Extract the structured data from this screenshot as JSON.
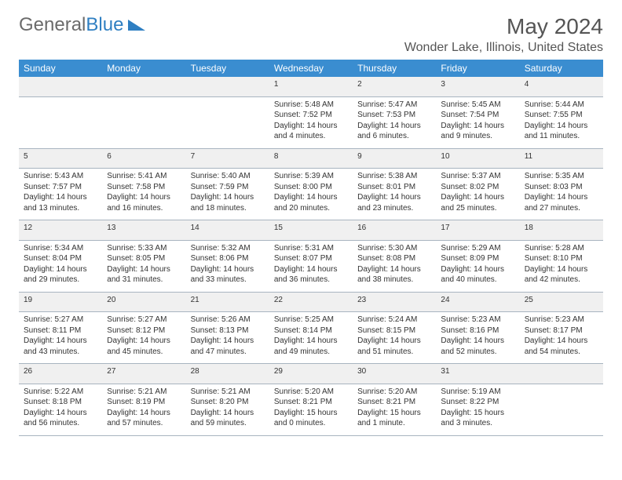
{
  "logo": {
    "part1": "General",
    "part2": "Blue"
  },
  "title": "May 2024",
  "location": "Wonder Lake, Illinois, United States",
  "colors": {
    "header_bg": "#3a8dd0",
    "header_text": "#ffffff",
    "daynum_bg": "#f0f0f0",
    "body_text": "#333333",
    "title_text": "#555555",
    "rule": "#a8b4c0"
  },
  "day_headers": [
    "Sunday",
    "Monday",
    "Tuesday",
    "Wednesday",
    "Thursday",
    "Friday",
    "Saturday"
  ],
  "weeks": [
    {
      "nums": [
        "",
        "",
        "",
        "1",
        "2",
        "3",
        "4"
      ],
      "cells": [
        null,
        null,
        null,
        {
          "sunrise": "5:48 AM",
          "sunset": "7:52 PM",
          "daylight": "14 hours and 4 minutes."
        },
        {
          "sunrise": "5:47 AM",
          "sunset": "7:53 PM",
          "daylight": "14 hours and 6 minutes."
        },
        {
          "sunrise": "5:45 AM",
          "sunset": "7:54 PM",
          "daylight": "14 hours and 9 minutes."
        },
        {
          "sunrise": "5:44 AM",
          "sunset": "7:55 PM",
          "daylight": "14 hours and 11 minutes."
        }
      ]
    },
    {
      "nums": [
        "5",
        "6",
        "7",
        "8",
        "9",
        "10",
        "11"
      ],
      "cells": [
        {
          "sunrise": "5:43 AM",
          "sunset": "7:57 PM",
          "daylight": "14 hours and 13 minutes."
        },
        {
          "sunrise": "5:41 AM",
          "sunset": "7:58 PM",
          "daylight": "14 hours and 16 minutes."
        },
        {
          "sunrise": "5:40 AM",
          "sunset": "7:59 PM",
          "daylight": "14 hours and 18 minutes."
        },
        {
          "sunrise": "5:39 AM",
          "sunset": "8:00 PM",
          "daylight": "14 hours and 20 minutes."
        },
        {
          "sunrise": "5:38 AM",
          "sunset": "8:01 PM",
          "daylight": "14 hours and 23 minutes."
        },
        {
          "sunrise": "5:37 AM",
          "sunset": "8:02 PM",
          "daylight": "14 hours and 25 minutes."
        },
        {
          "sunrise": "5:35 AM",
          "sunset": "8:03 PM",
          "daylight": "14 hours and 27 minutes."
        }
      ]
    },
    {
      "nums": [
        "12",
        "13",
        "14",
        "15",
        "16",
        "17",
        "18"
      ],
      "cells": [
        {
          "sunrise": "5:34 AM",
          "sunset": "8:04 PM",
          "daylight": "14 hours and 29 minutes."
        },
        {
          "sunrise": "5:33 AM",
          "sunset": "8:05 PM",
          "daylight": "14 hours and 31 minutes."
        },
        {
          "sunrise": "5:32 AM",
          "sunset": "8:06 PM",
          "daylight": "14 hours and 33 minutes."
        },
        {
          "sunrise": "5:31 AM",
          "sunset": "8:07 PM",
          "daylight": "14 hours and 36 minutes."
        },
        {
          "sunrise": "5:30 AM",
          "sunset": "8:08 PM",
          "daylight": "14 hours and 38 minutes."
        },
        {
          "sunrise": "5:29 AM",
          "sunset": "8:09 PM",
          "daylight": "14 hours and 40 minutes."
        },
        {
          "sunrise": "5:28 AM",
          "sunset": "8:10 PM",
          "daylight": "14 hours and 42 minutes."
        }
      ]
    },
    {
      "nums": [
        "19",
        "20",
        "21",
        "22",
        "23",
        "24",
        "25"
      ],
      "cells": [
        {
          "sunrise": "5:27 AM",
          "sunset": "8:11 PM",
          "daylight": "14 hours and 43 minutes."
        },
        {
          "sunrise": "5:27 AM",
          "sunset": "8:12 PM",
          "daylight": "14 hours and 45 minutes."
        },
        {
          "sunrise": "5:26 AM",
          "sunset": "8:13 PM",
          "daylight": "14 hours and 47 minutes."
        },
        {
          "sunrise": "5:25 AM",
          "sunset": "8:14 PM",
          "daylight": "14 hours and 49 minutes."
        },
        {
          "sunrise": "5:24 AM",
          "sunset": "8:15 PM",
          "daylight": "14 hours and 51 minutes."
        },
        {
          "sunrise": "5:23 AM",
          "sunset": "8:16 PM",
          "daylight": "14 hours and 52 minutes."
        },
        {
          "sunrise": "5:23 AM",
          "sunset": "8:17 PM",
          "daylight": "14 hours and 54 minutes."
        }
      ]
    },
    {
      "nums": [
        "26",
        "27",
        "28",
        "29",
        "30",
        "31",
        ""
      ],
      "cells": [
        {
          "sunrise": "5:22 AM",
          "sunset": "8:18 PM",
          "daylight": "14 hours and 56 minutes."
        },
        {
          "sunrise": "5:21 AM",
          "sunset": "8:19 PM",
          "daylight": "14 hours and 57 minutes."
        },
        {
          "sunrise": "5:21 AM",
          "sunset": "8:20 PM",
          "daylight": "14 hours and 59 minutes."
        },
        {
          "sunrise": "5:20 AM",
          "sunset": "8:21 PM",
          "daylight": "15 hours and 0 minutes."
        },
        {
          "sunrise": "5:20 AM",
          "sunset": "8:21 PM",
          "daylight": "15 hours and 1 minute."
        },
        {
          "sunrise": "5:19 AM",
          "sunset": "8:22 PM",
          "daylight": "15 hours and 3 minutes."
        },
        null
      ]
    }
  ],
  "labels": {
    "sunrise": "Sunrise: ",
    "sunset": "Sunset: ",
    "daylight": "Daylight: "
  }
}
